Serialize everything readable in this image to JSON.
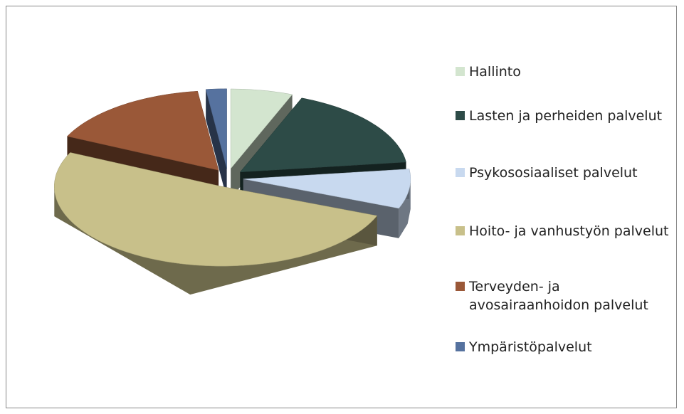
{
  "chart_data": {
    "type": "pie",
    "categories": [
      "Hallinto",
      "Lasten ja perheiden palvelut",
      "Psykososiaaliset palvelut",
      "Hoito- ja vanhustyön palvelut",
      "Terveyden- ja avosairaanhoidon palvelut",
      "Ympäristöpalvelut"
    ],
    "values": [
      6,
      17,
      8,
      51,
      16,
      2
    ],
    "colors": [
      "#d3e5cf",
      "#2d4b47",
      "#c8d9ef",
      "#c8c08a",
      "#9a5838",
      "#56729f"
    ],
    "legend": "right"
  }
}
